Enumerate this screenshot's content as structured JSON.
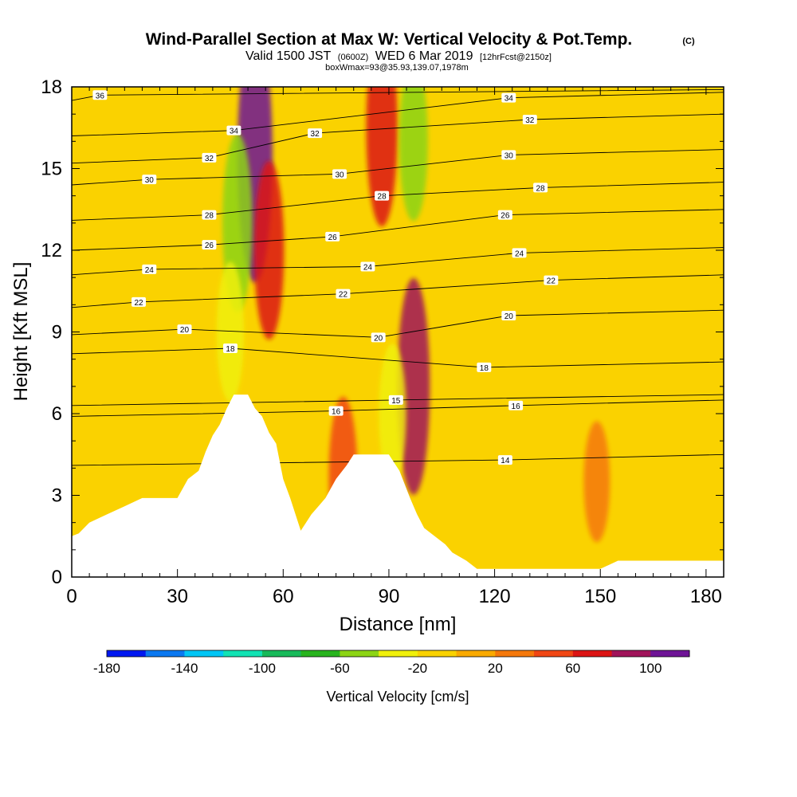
{
  "chart_data": {
    "type": "heatmap",
    "title": "Wind-Parallel Section at Max W: Vertical Velocity & Pot.Temp.",
    "title_copyright": "(C)",
    "subtitle": {
      "valid": "Valid 1500 JST",
      "zulu": "(0600Z)",
      "date": "WED 6 Mar 2019",
      "forecast": "[12hrFcst@2150z]"
    },
    "annotation": "boxWmax=93@35.93,139.07,1978m",
    "xlabel": "Distance [nm]",
    "ylabel": "Height [Kft MSL]",
    "xlim": [
      0,
      185
    ],
    "ylim": [
      0,
      18
    ],
    "x_ticks": [
      0,
      30,
      60,
      90,
      120,
      150,
      180
    ],
    "y_ticks": [
      0,
      3,
      6,
      9,
      12,
      15,
      18
    ],
    "grid": false,
    "colorbar": {
      "title": "Vertical Velocity [cm/s]",
      "orientation": "horizontal",
      "placement": "bottom",
      "levels": [
        -180,
        -160,
        -140,
        -120,
        -100,
        -80,
        -60,
        -40,
        -20,
        0,
        20,
        40,
        60,
        80,
        100,
        120
      ],
      "tick_labels": [
        "-180",
        "-140",
        "-100",
        "-60",
        "-20",
        "20",
        "60",
        "100"
      ],
      "tick_values": [
        -180,
        -140,
        -100,
        -60,
        -20,
        20,
        60,
        100
      ],
      "colors": [
        "#0018f0",
        "#0a78f0",
        "#00c6f6",
        "#12e3b4",
        "#18ba5a",
        "#28b41e",
        "#8cd414",
        "#f0f00a",
        "#fad200",
        "#faaa00",
        "#f5780a",
        "#f04614",
        "#dc1414",
        "#a0145a",
        "#6e1496"
      ]
    },
    "terrain_profile": {
      "x": [
        0,
        2,
        5,
        10,
        15,
        20,
        25,
        30,
        33,
        36,
        38,
        40,
        42,
        44,
        46,
        50,
        52,
        54,
        56,
        58,
        60,
        62,
        65,
        68,
        70,
        72,
        75,
        78,
        80,
        83,
        85,
        90,
        93,
        96,
        98,
        100,
        103,
        106,
        108,
        112,
        115,
        120,
        130,
        140,
        150,
        155,
        160,
        170,
        180,
        185
      ],
      "height": [
        1.5,
        1.6,
        2.0,
        2.3,
        2.6,
        2.9,
        2.9,
        2.9,
        3.6,
        3.9,
        4.6,
        5.2,
        5.6,
        6.2,
        6.7,
        6.7,
        6.2,
        5.9,
        5.3,
        4.9,
        3.6,
        2.9,
        1.7,
        2.3,
        2.6,
        2.9,
        3.6,
        4.1,
        4.5,
        4.5,
        4.5,
        4.5,
        3.9,
        2.9,
        2.3,
        1.8,
        1.5,
        1.2,
        0.9,
        0.6,
        0.3,
        0.3,
        0.3,
        0.3,
        0.3,
        0.6,
        0.6,
        0.6,
        0.6,
        0.6
      ]
    },
    "vertical_velocity_features": [
      {
        "x": 52,
        "z": 15.5,
        "w": 100
      },
      {
        "x": 56,
        "z": 12.0,
        "w": 60
      },
      {
        "x": 88,
        "z": 16.5,
        "w": 70
      },
      {
        "x": 97,
        "z": 7.0,
        "w": 80
      },
      {
        "x": 77,
        "z": 3.7,
        "w": 50
      },
      {
        "x": 47,
        "z": 13.0,
        "w": -60
      },
      {
        "x": 45,
        "z": 9.0,
        "w": -40
      },
      {
        "x": 97,
        "z": 16.0,
        "w": -50
      },
      {
        "x": 91,
        "z": 6.0,
        "w": -40
      },
      {
        "x": 149,
        "z": 3.5,
        "w": 30
      }
    ],
    "theta_contour_labels": [
      {
        "value": "36",
        "x": 8,
        "z": 17.7
      },
      {
        "value": "34",
        "x": 46,
        "z": 16.4
      },
      {
        "value": "34",
        "x": 124,
        "z": 17.6
      },
      {
        "value": "32",
        "x": 39,
        "z": 15.4
      },
      {
        "value": "32",
        "x": 69,
        "z": 16.3
      },
      {
        "value": "32",
        "x": 130,
        "z": 16.8
      },
      {
        "value": "30",
        "x": 22,
        "z": 14.6
      },
      {
        "value": "30",
        "x": 76,
        "z": 14.8
      },
      {
        "value": "30",
        "x": 124,
        "z": 15.5
      },
      {
        "value": "28",
        "x": 39,
        "z": 13.3
      },
      {
        "value": "28",
        "x": 88,
        "z": 14.0
      },
      {
        "value": "28",
        "x": 133,
        "z": 14.3
      },
      {
        "value": "26",
        "x": 39,
        "z": 12.2
      },
      {
        "value": "26",
        "x": 74,
        "z": 12.5
      },
      {
        "value": "26",
        "x": 123,
        "z": 13.3
      },
      {
        "value": "24",
        "x": 22,
        "z": 11.3
      },
      {
        "value": "24",
        "x": 84,
        "z": 11.4
      },
      {
        "value": "24",
        "x": 127,
        "z": 11.9
      },
      {
        "value": "22",
        "x": 19,
        "z": 10.1
      },
      {
        "value": "22",
        "x": 77,
        "z": 10.4
      },
      {
        "value": "22",
        "x": 136,
        "z": 10.9
      },
      {
        "value": "20",
        "x": 32,
        "z": 9.1
      },
      {
        "value": "20",
        "x": 87,
        "z": 8.8
      },
      {
        "value": "20",
        "x": 124,
        "z": 9.6
      },
      {
        "value": "18",
        "x": 45,
        "z": 8.4
      },
      {
        "value": "18",
        "x": 117,
        "z": 7.7
      },
      {
        "value": "16",
        "x": 75,
        "z": 6.1
      },
      {
        "value": "16",
        "x": 126,
        "z": 6.3
      },
      {
        "value": "15",
        "x": 92,
        "z": 6.5
      },
      {
        "value": "14",
        "x": 123,
        "z": 4.3
      }
    ]
  }
}
